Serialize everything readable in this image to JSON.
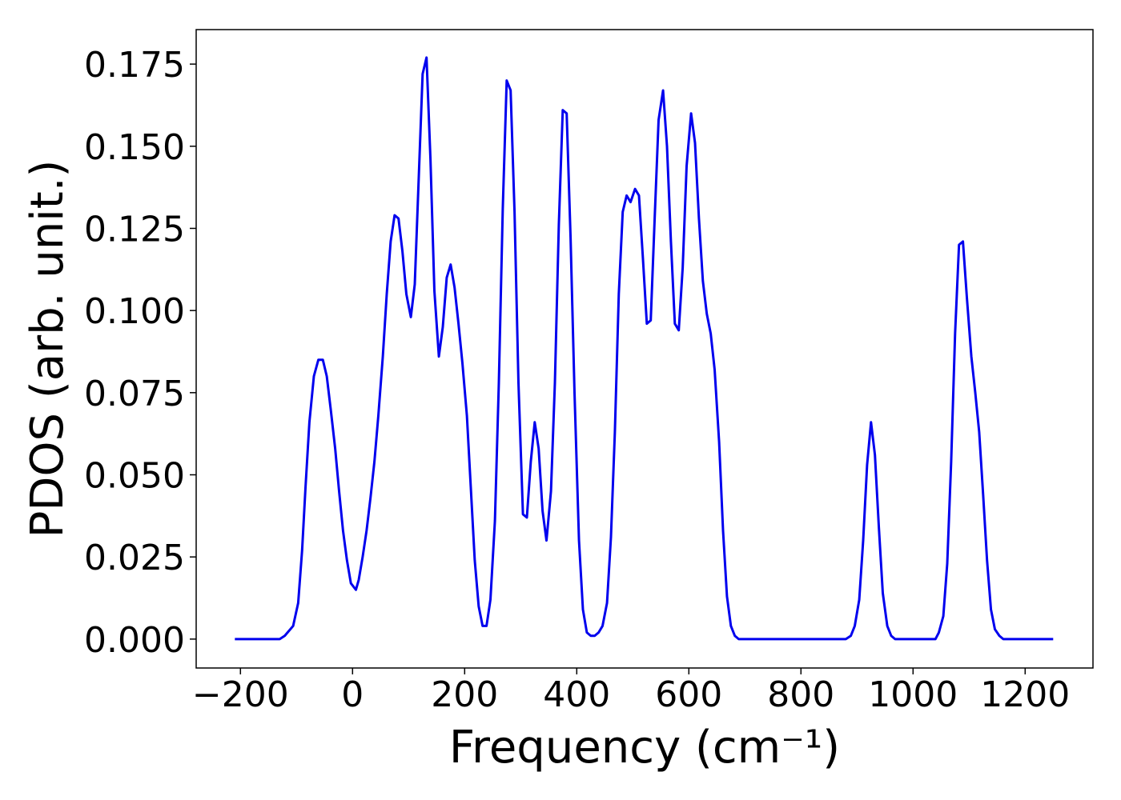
{
  "chart_data": {
    "type": "line",
    "xlabel": "Frequency (cm⁻¹)",
    "ylabel": "PDOS (arb. unit.)",
    "xlim": [
      -279,
      1321
    ],
    "ylim": [
      -0.0088,
      0.1855
    ],
    "xticks": [
      {
        "value": -200,
        "label": "−200"
      },
      0,
      200,
      400,
      600,
      800,
      1000,
      1200
    ],
    "yticks": [
      {
        "value": 0,
        "label": "0.000"
      },
      {
        "value": 0.025,
        "label": "0.025"
      },
      {
        "value": 0.05,
        "label": "0.050"
      },
      {
        "value": 0.075,
        "label": "0.075"
      },
      {
        "value": 0.1,
        "label": "0.100"
      },
      {
        "value": 0.125,
        "label": "0.125"
      },
      {
        "value": 0.15,
        "label": "0.150"
      },
      {
        "value": 0.175,
        "label": "0.175"
      }
    ],
    "grid": false,
    "x": [
      -210,
      -130,
      -121,
      -106,
      -97,
      -90,
      -84,
      -77,
      -69,
      -61,
      -53,
      -46,
      -39,
      -31,
      -24,
      -17,
      -10,
      -3,
      6,
      11,
      18,
      25,
      32,
      39,
      46,
      54,
      61,
      68,
      75,
      82,
      89,
      96,
      104,
      111,
      118,
      125,
      132,
      139,
      146,
      154,
      161,
      168,
      175,
      182,
      189,
      196,
      204,
      211,
      218,
      225,
      232,
      239,
      246,
      254,
      261,
      268,
      275,
      282,
      289,
      296,
      304,
      311,
      318,
      325,
      332,
      339,
      346,
      354,
      361,
      368,
      375,
      382,
      389,
      396,
      404,
      411,
      418,
      425,
      432,
      439,
      446,
      454,
      461,
      468,
      475,
      482,
      489,
      496,
      504,
      511,
      518,
      525,
      532,
      539,
      546,
      554,
      561,
      568,
      575,
      582,
      589,
      596,
      604,
      611,
      618,
      625,
      632,
      639,
      646,
      654,
      661,
      668,
      675,
      682,
      689,
      700,
      880,
      889,
      896,
      904,
      911,
      918,
      925,
      932,
      939,
      946,
      954,
      961,
      968,
      1040,
      1046,
      1054,
      1061,
      1068,
      1075,
      1082,
      1089,
      1096,
      1104,
      1111,
      1118,
      1125,
      1132,
      1139,
      1146,
      1154,
      1161,
      1250
    ],
    "series": [
      {
        "name": "PDOS",
        "color": "#0000ee",
        "values": [
          0,
          0,
          0.001,
          0.004,
          0.011,
          0.027,
          0.046,
          0.066,
          0.08,
          0.085,
          0.085,
          0.08,
          0.07,
          0.058,
          0.045,
          0.033,
          0.024,
          0.017,
          0.015,
          0.018,
          0.025,
          0.033,
          0.043,
          0.054,
          0.068,
          0.086,
          0.105,
          0.121,
          0.129,
          0.128,
          0.118,
          0.105,
          0.098,
          0.108,
          0.14,
          0.172,
          0.177,
          0.146,
          0.106,
          0.086,
          0.095,
          0.11,
          0.114,
          0.107,
          0.096,
          0.084,
          0.068,
          0.046,
          0.024,
          0.01,
          0.004,
          0.004,
          0.012,
          0.036,
          0.078,
          0.131,
          0.17,
          0.167,
          0.13,
          0.078,
          0.038,
          0.037,
          0.054,
          0.066,
          0.058,
          0.039,
          0.03,
          0.045,
          0.078,
          0.126,
          0.161,
          0.16,
          0.122,
          0.075,
          0.03,
          0.009,
          0.002,
          0.001,
          0.001,
          0.002,
          0.004,
          0.011,
          0.031,
          0.063,
          0.105,
          0.13,
          0.135,
          0.133,
          0.137,
          0.135,
          0.116,
          0.096,
          0.097,
          0.128,
          0.158,
          0.167,
          0.15,
          0.121,
          0.096,
          0.094,
          0.113,
          0.144,
          0.16,
          0.151,
          0.128,
          0.109,
          0.099,
          0.093,
          0.082,
          0.06,
          0.033,
          0.013,
          0.004,
          0.001,
          0,
          0,
          0,
          0.001,
          0.004,
          0.012,
          0.03,
          0.053,
          0.066,
          0.056,
          0.034,
          0.014,
          0.004,
          0.001,
          0,
          0,
          0.002,
          0.007,
          0.023,
          0.054,
          0.093,
          0.12,
          0.121,
          0.104,
          0.086,
          0.075,
          0.063,
          0.044,
          0.024,
          0.009,
          0.003,
          0.001,
          0,
          0
        ]
      }
    ]
  }
}
